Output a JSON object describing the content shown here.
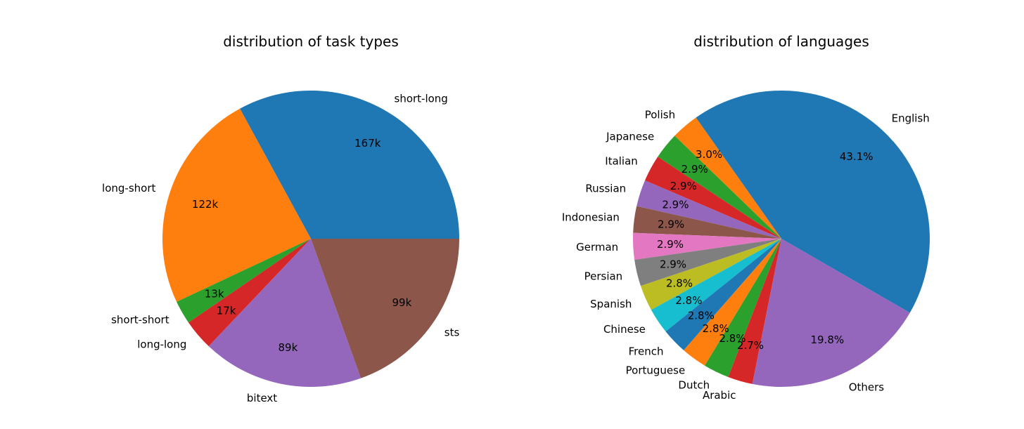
{
  "chart_data": [
    {
      "type": "pie",
      "title": "distribution of task types",
      "slices": [
        {
          "label": "short-long",
          "value": 167,
          "value_label": "167k",
          "color": "#1f77b4"
        },
        {
          "label": "long-short",
          "value": 122,
          "value_label": "122k",
          "color": "#ff7f0e"
        },
        {
          "label": "short-short",
          "value": 13,
          "value_label": "13k",
          "color": "#2ca02c"
        },
        {
          "label": "long-long",
          "value": 17,
          "value_label": "17k",
          "color": "#d62728"
        },
        {
          "label": "bitext",
          "value": 89,
          "value_label": "89k",
          "color": "#9467bd"
        },
        {
          "label": "sts",
          "value": 99,
          "value_label": "99k",
          "color": "#8c564b"
        }
      ],
      "start_angle_deg": 0,
      "direction": "counterclockwise"
    },
    {
      "type": "pie",
      "title": "distribution of languages",
      "slices": [
        {
          "label": "English",
          "value": 43.1,
          "value_label": "43.1%",
          "color": "#1f77b4"
        },
        {
          "label": "Polish",
          "value": 3.0,
          "value_label": "3.0%",
          "color": "#ff7f0e"
        },
        {
          "label": "Japanese",
          "value": 2.9,
          "value_label": "2.9%",
          "color": "#2ca02c"
        },
        {
          "label": "Italian",
          "value": 2.9,
          "value_label": "2.9%",
          "color": "#d62728"
        },
        {
          "label": "Russian",
          "value": 2.9,
          "value_label": "2.9%",
          "color": "#9467bd"
        },
        {
          "label": "Indonesian",
          "value": 2.9,
          "value_label": "2.9%",
          "color": "#8c564b"
        },
        {
          "label": "German",
          "value": 2.9,
          "value_label": "2.9%",
          "color": "#e377c2"
        },
        {
          "label": "Persian",
          "value": 2.9,
          "value_label": "2.9%",
          "color": "#7f7f7f"
        },
        {
          "label": "Spanish",
          "value": 2.8,
          "value_label": "2.8%",
          "color": "#bcbd22"
        },
        {
          "label": "Chinese",
          "value": 2.8,
          "value_label": "2.8%",
          "color": "#17becf"
        },
        {
          "label": "French",
          "value": 2.8,
          "value_label": "2.8%",
          "color": "#1f77b4"
        },
        {
          "label": "Portuguese",
          "value": 2.8,
          "value_label": "2.8%",
          "color": "#ff7f0e"
        },
        {
          "label": "Dutch",
          "value": 2.8,
          "value_label": "2.8%",
          "color": "#2ca02c"
        },
        {
          "label": "Arabic",
          "value": 2.7,
          "value_label": "2.7%",
          "color": "#d62728"
        },
        {
          "label": "Others",
          "value": 19.8,
          "value_label": "19.8%",
          "color": "#9467bd"
        }
      ],
      "start_angle_deg": -30,
      "direction": "counterclockwise"
    }
  ]
}
